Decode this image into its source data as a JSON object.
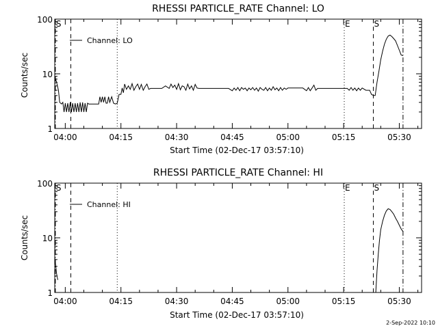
{
  "footer_timestamp": "2-Sep-2022 10:10",
  "chart_data": [
    {
      "type": "line",
      "title": "RHESSI PARTICLE_RATE Channel: LO",
      "xlabel": "Start Time (02-Dec-17 03:57:10)",
      "ylabel": "Counts/sec",
      "y_scale": "log",
      "ylim": [
        1,
        100
      ],
      "xlim": [
        "03:57:10",
        "05:36:00"
      ],
      "x_ticks": [
        "04:00",
        "04:15",
        "04:30",
        "04:45",
        "05:00",
        "05:15",
        "05:30"
      ],
      "y_ticks": [
        "1",
        "10",
        "100"
      ],
      "legend": {
        "label": "Channel: LO",
        "position": "top-left"
      },
      "markers": [
        {
          "label": "S",
          "time": "03:57:20",
          "style": "dashdot"
        },
        {
          "label": "",
          "time": "04:01:30",
          "style": "dashed"
        },
        {
          "label": "",
          "time": "04:14:00",
          "style": "dotted"
        },
        {
          "label": "E",
          "time": "05:15:10",
          "style": "dotted"
        },
        {
          "label": "S",
          "time": "05:23:00",
          "style": "dashed"
        },
        {
          "label": "",
          "time": "05:31:00",
          "style": "dashdot"
        }
      ],
      "series": [
        {
          "name": "Channel: LO",
          "x": [
            "03:57:10",
            "03:57:40",
            "03:58:10",
            "03:58:30",
            "03:59:00",
            "03:59:20",
            "03:59:40",
            "04:00:00",
            "04:00:20",
            "04:00:40",
            "04:01:00",
            "04:01:20",
            "04:01:40",
            "04:02:00",
            "04:02:20",
            "04:02:40",
            "04:03:00",
            "04:03:20",
            "04:03:40",
            "04:04:00",
            "04:04:20",
            "04:04:40",
            "04:05:00",
            "04:05:20",
            "04:05:40",
            "04:06:00",
            "04:06:20",
            "04:06:40",
            "04:07:00",
            "04:07:30",
            "04:08:00",
            "04:08:30",
            "04:09:00",
            "04:09:20",
            "04:09:40",
            "04:10:00",
            "04:10:20",
            "04:10:40",
            "04:11:00",
            "04:11:20",
            "04:11:40",
            "04:12:00",
            "04:12:30",
            "04:13:00",
            "04:13:30",
            "04:14:00",
            "04:14:30",
            "04:15:00",
            "04:15:20",
            "04:15:40",
            "04:16:00",
            "04:16:30",
            "04:17:00",
            "04:17:30",
            "04:18:00",
            "04:18:30",
            "04:19:00",
            "04:19:30",
            "04:20:00",
            "04:20:30",
            "04:21:00",
            "04:21:30",
            "04:22:00",
            "04:22:30",
            "04:23:00",
            "04:24:00",
            "04:25:00",
            "04:26:00",
            "04:27:00",
            "04:28:00",
            "04:28:30",
            "04:29:00",
            "04:29:30",
            "04:30:00",
            "04:30:30",
            "04:31:00",
            "04:31:30",
            "04:32:00",
            "04:32:30",
            "04:33:00",
            "04:33:30",
            "04:34:00",
            "04:34:30",
            "04:35:00",
            "04:35:30",
            "04:36:00",
            "04:37:00",
            "04:38:00",
            "04:39:00",
            "04:40:00",
            "04:41:00",
            "04:42:00",
            "04:43:00",
            "04:44:00",
            "04:45:00",
            "04:45:30",
            "04:46:00",
            "04:46:30",
            "04:47:00",
            "04:47:30",
            "04:48:00",
            "04:48:30",
            "04:49:00",
            "04:49:30",
            "04:50:00",
            "04:50:30",
            "04:51:00",
            "04:51:30",
            "04:52:00",
            "04:52:30",
            "04:53:00",
            "04:53:30",
            "04:54:00",
            "04:54:30",
            "04:55:00",
            "04:55:30",
            "04:56:00",
            "04:56:30",
            "04:57:00",
            "04:57:30",
            "04:58:00",
            "04:58:30",
            "04:59:00",
            "04:59:30",
            "05:00:00",
            "05:01:00",
            "05:02:00",
            "05:03:00",
            "05:04:00",
            "05:05:00",
            "05:05:30",
            "05:06:00",
            "05:06:30",
            "05:07:00",
            "05:07:30",
            "05:08:00",
            "05:09:00",
            "05:10:00",
            "05:11:00",
            "05:12:00",
            "05:13:00",
            "05:14:00",
            "05:15:00",
            "05:16:00",
            "05:16:30",
            "05:17:00",
            "05:17:30",
            "05:18:00",
            "05:18:30",
            "05:19:00",
            "05:19:30",
            "05:20:00",
            "05:21:00",
            "05:22:00",
            "05:22:30",
            "05:23:00",
            "05:23:30",
            "05:24:00",
            "05:24:30",
            "05:25:00",
            "05:25:30",
            "05:26:00",
            "05:26:30",
            "05:27:00",
            "05:27:30",
            "05:28:00",
            "05:28:30",
            "05:29:00",
            "05:29:30",
            "05:30:00",
            "05:30:30",
            "05:31:00"
          ],
          "y": [
            9.0,
            7.0,
            5.0,
            3.0,
            2.8,
            3.0,
            2.0,
            2.9,
            2.0,
            2.9,
            2.0,
            3.0,
            2.0,
            2.9,
            2.0,
            2.9,
            2.0,
            2.9,
            2.0,
            3.0,
            2.0,
            3.0,
            2.0,
            2.9,
            2.0,
            2.9,
            2.8,
            2.8,
            2.8,
            2.8,
            2.8,
            2.8,
            2.8,
            3.8,
            3.0,
            3.8,
            3.0,
            3.8,
            2.9,
            2.9,
            3.8,
            3.0,
            3.8,
            2.9,
            2.8,
            2.9,
            4.2,
            4.2,
            5.5,
            4.5,
            6.5,
            5.2,
            6.0,
            5.2,
            6.6,
            5.0,
            5.8,
            6.5,
            5.2,
            6.4,
            5.0,
            5.8,
            6.5,
            5.2,
            5.4,
            5.4,
            5.4,
            5.4,
            6.0,
            5.4,
            6.5,
            5.6,
            6.2,
            5.2,
            6.6,
            5.1,
            6.0,
            5.8,
            5.0,
            6.5,
            5.3,
            6.0,
            5.0,
            6.4,
            5.5,
            5.4,
            5.4,
            5.4,
            5.4,
            5.4,
            5.4,
            5.4,
            5.4,
            5.4,
            4.9,
            5.5,
            5.0,
            5.6,
            4.9,
            5.6,
            5.2,
            5.5,
            4.9,
            5.5,
            5.1,
            5.6,
            5.0,
            5.5,
            4.8,
            5.6,
            5.2,
            5.0,
            5.6,
            4.9,
            5.5,
            5.0,
            5.8,
            5.1,
            5.5,
            4.9,
            5.6,
            5.0,
            5.5,
            5.2,
            5.5,
            5.5,
            5.5,
            5.5,
            5.5,
            4.9,
            5.6,
            4.9,
            5.5,
            6.2,
            5.0,
            5.4,
            5.4,
            5.4,
            5.4,
            5.4,
            5.4,
            5.4,
            5.4,
            5.4,
            5.0,
            5.6,
            5.0,
            5.5,
            4.9,
            5.5,
            5.0,
            5.5,
            5.0,
            5.0,
            4.2,
            4.0,
            4.0,
            7.0,
            11.0,
            18.0,
            26.0,
            35.0,
            43.0,
            49.0,
            51.0,
            48.0,
            44.0,
            40.0,
            33.0,
            27.0,
            22.0,
            21.5
          ]
        }
      ]
    },
    {
      "type": "line",
      "title": "RHESSI PARTICLE_RATE Channel: HI",
      "xlabel": "Start Time (02-Dec-17 03:57:10)",
      "ylabel": "Counts/sec",
      "y_scale": "log",
      "ylim": [
        1,
        100
      ],
      "xlim": [
        "03:57:10",
        "05:36:00"
      ],
      "x_ticks": [
        "04:00",
        "04:15",
        "04:30",
        "04:45",
        "05:00",
        "05:15",
        "05:30"
      ],
      "y_ticks": [
        "1",
        "10",
        "100"
      ],
      "legend": {
        "label": "Channel: HI",
        "position": "top-left"
      },
      "markers": [
        {
          "label": "S",
          "time": "03:57:20",
          "style": "dashdot"
        },
        {
          "label": "",
          "time": "04:01:30",
          "style": "dashed"
        },
        {
          "label": "",
          "time": "04:14:00",
          "style": "dotted"
        },
        {
          "label": "E",
          "time": "05:15:10",
          "style": "dotted"
        },
        {
          "label": "S",
          "time": "05:23:00",
          "style": "dashed"
        },
        {
          "label": "",
          "time": "05:31:00",
          "style": "dashdot"
        }
      ],
      "series": [
        {
          "name": "Channel: HI",
          "x": [
            "03:57:10",
            "03:57:20",
            "03:57:30",
            "03:57:40",
            "03:57:50",
            "03:58:00"
          ],
          "y": [
            4.5,
            3.5,
            2.8,
            2.2,
            1.9,
            1.7
          ]
        },
        {
          "name": "Channel: HI",
          "x": [
            "05:23:40",
            "05:24:00",
            "05:24:20",
            "05:24:40",
            "05:25:00",
            "05:25:30",
            "05:26:00",
            "05:26:30",
            "05:27:00",
            "05:27:30",
            "05:28:00",
            "05:28:30",
            "05:29:00",
            "05:29:30",
            "05:30:00",
            "05:30:30",
            "05:31:00"
          ],
          "y": [
            1.0,
            2.5,
            5.0,
            9.0,
            14.0,
            20.0,
            26.0,
            31.0,
            34.0,
            33.0,
            30.0,
            27.0,
            23.0,
            20.0,
            17.0,
            14.5,
            13.0
          ]
        }
      ]
    }
  ]
}
